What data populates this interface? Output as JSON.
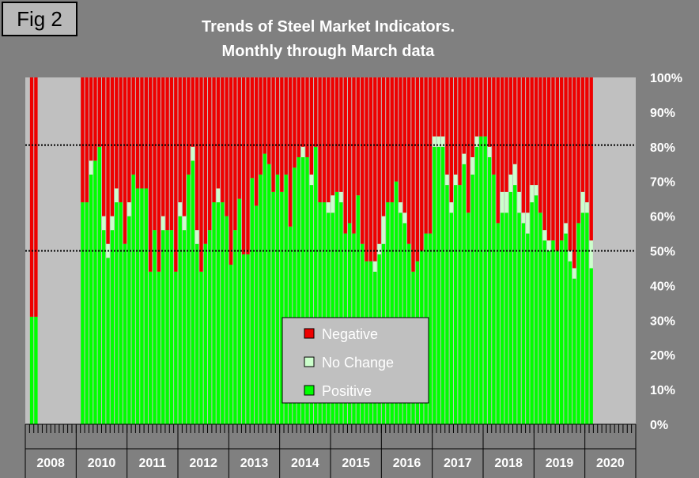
{
  "figure": {
    "label": "Fig 2"
  },
  "chart_data": {
    "type": "bar",
    "stacked": true,
    "percent": true,
    "title": "Trends of Steel Market Indicators.",
    "subtitle": "Monthly through March data",
    "ylim": [
      0,
      100
    ],
    "y_ticks": [
      "0%",
      "10%",
      "20%",
      "30%",
      "40%",
      "50%",
      "60%",
      "70%",
      "80%",
      "90%",
      "100%"
    ],
    "reference_lines": [
      50,
      80.5
    ],
    "legend": [
      "Negative",
      "No Change",
      "Positive"
    ],
    "legend_position": "bottom-center",
    "colors": {
      "Positive": "#00ff00",
      "No Change": "#ccffcc",
      "Negative": "#ee0000",
      "plot_bg": "#c0c0c0",
      "frame_bg": "#808080"
    },
    "year_labels": [
      "2008",
      "2010",
      "2011",
      "2012",
      "2013",
      "2014",
      "2015",
      "2016",
      "2017",
      "2018",
      "2019",
      "2020"
    ],
    "year_months": [
      12,
      12,
      12,
      12,
      12,
      12,
      12,
      12,
      12,
      12,
      12,
      12
    ],
    "bar_1_values": [
      [
        1,
        [
          31,
          0
        ]
      ],
      [
        2,
        [
          31,
          0
        ]
      ],
      [
        13,
        [
          64,
          0
        ]
      ],
      [
        14,
        [
          64,
          0
        ]
      ],
      [
        15,
        [
          72,
          4
        ]
      ],
      [
        16,
        [
          76,
          0
        ]
      ],
      [
        17,
        [
          80,
          0
        ]
      ],
      [
        18,
        [
          56,
          4
        ]
      ],
      [
        19,
        [
          48,
          4
        ]
      ],
      [
        20,
        [
          56,
          4
        ]
      ],
      [
        21,
        [
          64,
          4
        ]
      ],
      [
        22,
        [
          64,
          0
        ]
      ],
      [
        23,
        [
          52,
          0
        ]
      ],
      [
        24,
        [
          60,
          4
        ]
      ],
      [
        25,
        [
          72,
          0
        ]
      ],
      [
        26,
        [
          68,
          0
        ]
      ],
      [
        27,
        [
          68,
          0
        ]
      ],
      [
        28,
        [
          68,
          0
        ]
      ],
      [
        29,
        [
          44,
          0
        ]
      ],
      [
        30,
        [
          56,
          0
        ]
      ],
      [
        31,
        [
          44,
          0
        ]
      ],
      [
        32,
        [
          56,
          4
        ]
      ],
      [
        33,
        [
          56,
          0
        ]
      ],
      [
        34,
        [
          56,
          0
        ]
      ],
      [
        35,
        [
          44,
          0
        ]
      ],
      [
        36,
        [
          60,
          4
        ]
      ],
      [
        37,
        [
          56,
          4
        ]
      ],
      [
        38,
        [
          72,
          0
        ]
      ],
      [
        39,
        [
          76,
          4
        ]
      ],
      [
        40,
        [
          52,
          4
        ]
      ],
      [
        41,
        [
          44,
          0
        ]
      ],
      [
        42,
        [
          52,
          0
        ]
      ],
      [
        43,
        [
          56,
          0
        ]
      ],
      [
        44,
        [
          64,
          0
        ]
      ],
      [
        45,
        [
          64,
          4
        ]
      ],
      [
        46,
        [
          64,
          0
        ]
      ],
      [
        47,
        [
          60,
          0
        ]
      ],
      [
        48,
        [
          46,
          0
        ]
      ],
      [
        49,
        [
          56,
          0
        ]
      ],
      [
        50,
        [
          65,
          0
        ]
      ],
      [
        51,
        [
          49,
          0
        ]
      ],
      [
        52,
        [
          49,
          0
        ]
      ],
      [
        53,
        [
          71,
          0
        ]
      ],
      [
        54,
        [
          63,
          0
        ]
      ],
      [
        55,
        [
          72,
          0
        ]
      ],
      [
        56,
        [
          78,
          0
        ]
      ],
      [
        57,
        [
          75,
          0
        ]
      ],
      [
        58,
        [
          67,
          0
        ]
      ],
      [
        59,
        [
          72,
          0
        ]
      ],
      [
        60,
        [
          67,
          0
        ]
      ],
      [
        61,
        [
          72,
          0
        ]
      ],
      [
        62,
        [
          57,
          0
        ]
      ],
      [
        63,
        [
          74,
          0
        ]
      ],
      [
        64,
        [
          77,
          0
        ]
      ],
      [
        65,
        [
          77,
          3
        ]
      ],
      [
        66,
        [
          77,
          0
        ]
      ],
      [
        67,
        [
          69,
          3
        ]
      ],
      [
        68,
        [
          80,
          0
        ]
      ],
      [
        69,
        [
          64,
          0
        ]
      ],
      [
        70,
        [
          64,
          0
        ]
      ],
      [
        71,
        [
          61,
          3
        ]
      ],
      [
        72,
        [
          61,
          5
        ]
      ],
      [
        73,
        [
          67,
          0
        ]
      ],
      [
        74,
        [
          64,
          3
        ]
      ],
      [
        75,
        [
          55,
          0
        ]
      ],
      [
        76,
        [
          58,
          0
        ]
      ],
      [
        77,
        [
          55,
          0
        ]
      ],
      [
        78,
        [
          66,
          0
        ]
      ],
      [
        79,
        [
          52,
          0
        ]
      ],
      [
        80,
        [
          47,
          0
        ]
      ],
      [
        81,
        [
          47,
          0
        ]
      ],
      [
        82,
        [
          44,
          3
        ]
      ],
      [
        83,
        [
          49,
          3
        ]
      ],
      [
        84,
        [
          52,
          8
        ]
      ],
      [
        85,
        [
          64,
          0
        ]
      ],
      [
        86,
        [
          64,
          0
        ]
      ],
      [
        87,
        [
          70,
          0
        ]
      ],
      [
        88,
        [
          61,
          3
        ]
      ],
      [
        89,
        [
          58,
          3
        ]
      ],
      [
        90,
        [
          52,
          0
        ]
      ],
      [
        91,
        [
          44,
          0
        ]
      ],
      [
        92,
        [
          47,
          0
        ]
      ],
      [
        93,
        [
          50,
          0
        ]
      ],
      [
        94,
        [
          55,
          0
        ]
      ],
      [
        95,
        [
          55,
          0
        ]
      ],
      [
        96,
        [
          80,
          3
        ]
      ],
      [
        97,
        [
          80,
          3
        ]
      ],
      [
        98,
        [
          80,
          3
        ]
      ],
      [
        99,
        [
          69,
          3
        ]
      ],
      [
        100,
        [
          61,
          3
        ]
      ],
      [
        101,
        [
          69,
          3
        ]
      ],
      [
        102,
        [
          69,
          0
        ]
      ],
      [
        103,
        [
          75,
          3
        ]
      ],
      [
        104,
        [
          61,
          0
        ]
      ],
      [
        105,
        [
          72,
          5
        ]
      ],
      [
        106,
        [
          80,
          3
        ]
      ],
      [
        107,
        [
          83,
          0
        ]
      ],
      [
        108,
        [
          83,
          0
        ]
      ],
      [
        109,
        [
          77,
          3
        ]
      ],
      [
        110,
        [
          72,
          0
        ]
      ],
      [
        111,
        [
          58,
          0
        ]
      ],
      [
        112,
        [
          61,
          6
        ]
      ],
      [
        113,
        [
          61,
          6
        ]
      ],
      [
        114,
        [
          67,
          5
        ]
      ],
      [
        115,
        [
          69,
          6
        ]
      ],
      [
        116,
        [
          61,
          6
        ]
      ],
      [
        117,
        [
          58,
          3
        ]
      ],
      [
        118,
        [
          55,
          6
        ]
      ],
      [
        119,
        [
          64,
          5
        ]
      ],
      [
        120,
        [
          66,
          3
        ]
      ],
      [
        121,
        [
          61,
          0
        ]
      ],
      [
        122,
        [
          53,
          3
        ]
      ],
      [
        123,
        [
          50,
          3
        ]
      ],
      [
        124,
        [
          53,
          0
        ]
      ],
      [
        125,
        [
          50,
          0
        ]
      ],
      [
        126,
        [
          53,
          0
        ]
      ],
      [
        127,
        [
          55,
          3
        ]
      ],
      [
        128,
        [
          47,
          3
        ]
      ],
      [
        129,
        [
          42,
          3
        ]
      ],
      [
        130,
        [
          58,
          0
        ]
      ],
      [
        131,
        [
          61,
          6
        ]
      ],
      [
        132,
        [
          61,
          3
        ]
      ],
      [
        133,
        [
          45,
          8
        ]
      ]
    ]
  }
}
